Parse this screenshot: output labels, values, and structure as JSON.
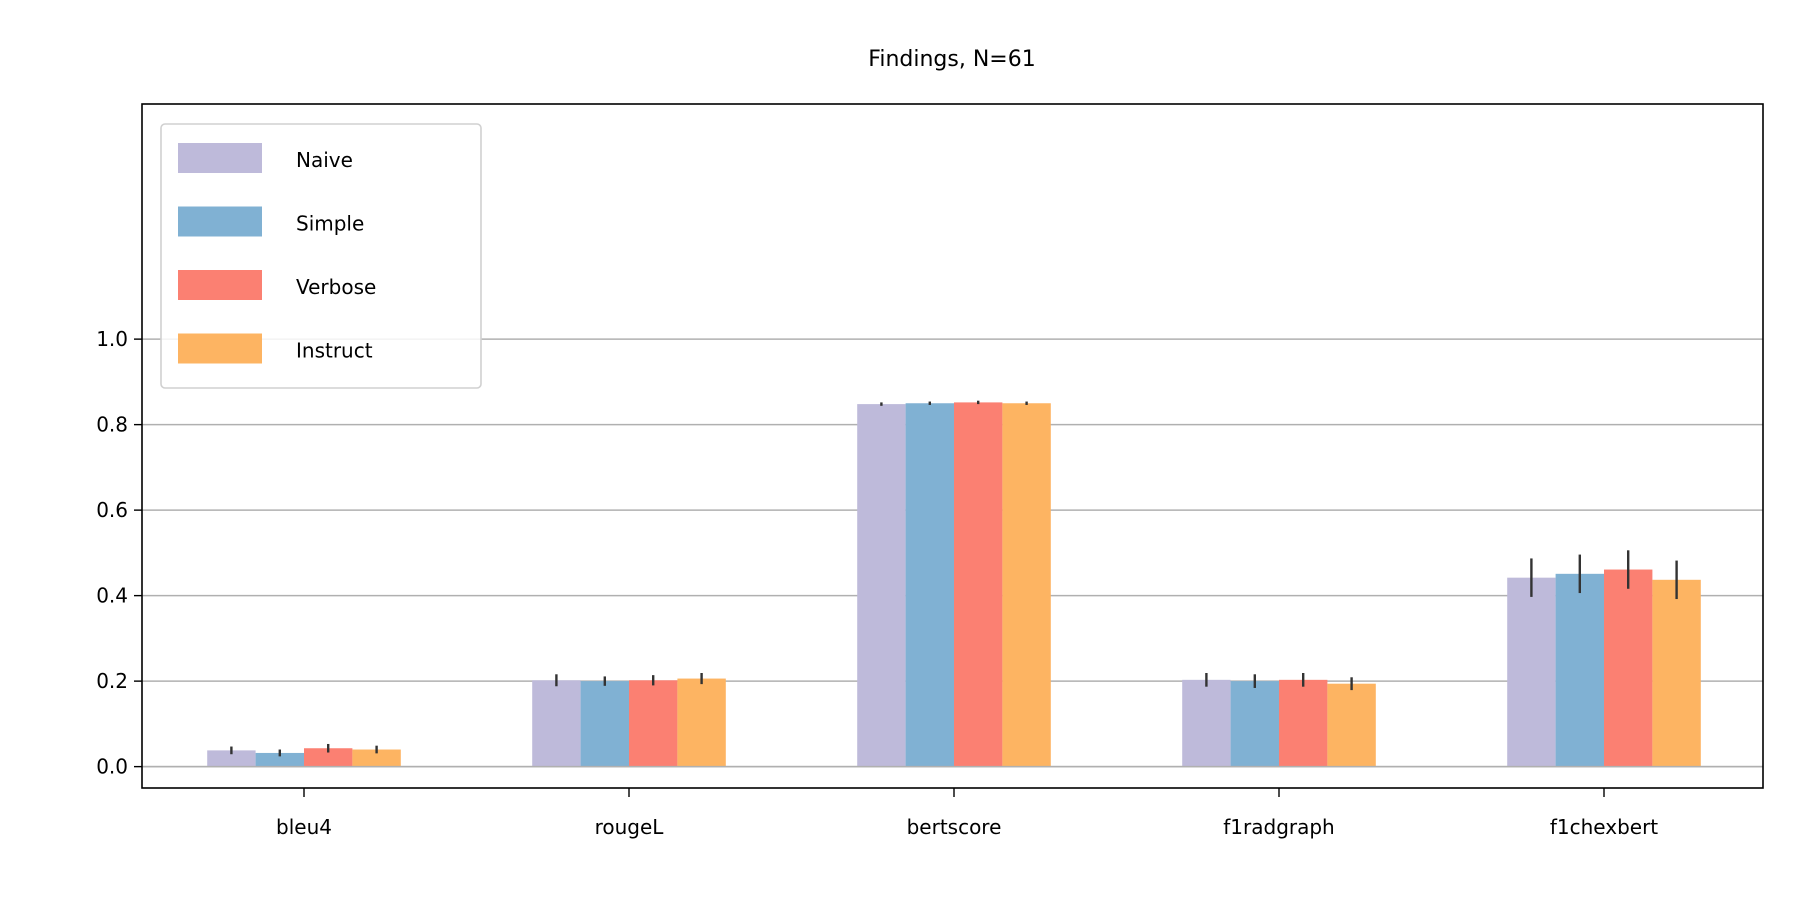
{
  "chart_data": {
    "type": "bar",
    "title": "Findings, N=61",
    "categories": [
      "bleu4",
      "rougeL",
      "bertscore",
      "f1radgraph",
      "f1chexbert"
    ],
    "series": [
      {
        "name": "Naive",
        "color": "#bebada",
        "values": [
          0.038,
          0.202,
          0.848,
          0.203,
          0.442
        ],
        "errors": [
          0.009,
          0.014,
          0.004,
          0.016,
          0.045
        ]
      },
      {
        "name": "Simple",
        "color": "#80b1d3",
        "values": [
          0.032,
          0.2,
          0.85,
          0.2,
          0.451
        ],
        "errors": [
          0.008,
          0.011,
          0.004,
          0.016,
          0.045
        ]
      },
      {
        "name": "Verbose",
        "color": "#fb8072",
        "values": [
          0.043,
          0.202,
          0.852,
          0.203,
          0.461
        ],
        "errors": [
          0.01,
          0.012,
          0.004,
          0.016,
          0.045
        ]
      },
      {
        "name": "Instruct",
        "color": "#fdb462",
        "values": [
          0.04,
          0.206,
          0.85,
          0.194,
          0.437
        ],
        "errors": [
          0.009,
          0.013,
          0.004,
          0.015,
          0.045
        ]
      }
    ],
    "ylim": [
      -0.05,
      1.55
    ],
    "yticks": [
      "0.0",
      "0.2",
      "0.4",
      "0.6",
      "0.8",
      "1.0"
    ],
    "grid": "horizontal",
    "legend_position": "top-left",
    "xlabel": "",
    "ylabel": ""
  }
}
